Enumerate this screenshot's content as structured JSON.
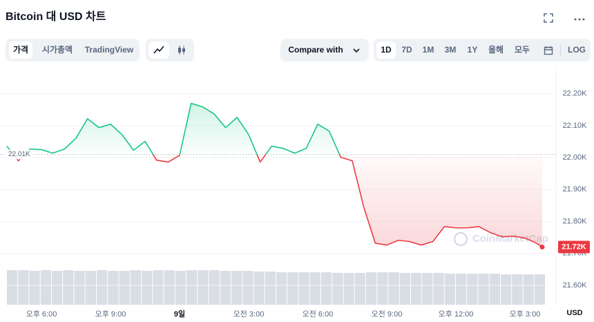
{
  "header": {
    "title": "Bitcoin 대 USD 차트"
  },
  "toolbar": {
    "tabs": [
      "가격",
      "시가총액",
      "TradingView"
    ],
    "compare": "Compare with",
    "ranges": [
      "1D",
      "7D",
      "1M",
      "3M",
      "1Y",
      "올해",
      "모두"
    ],
    "log": "LOG"
  },
  "chart_data": {
    "type": "line",
    "x": [
      16.5,
      17,
      17.5,
      18,
      18.5,
      19,
      19.5,
      20,
      20.5,
      21,
      21.5,
      22,
      22.5,
      23,
      23.5,
      24,
      24.5,
      25,
      25.5,
      26,
      26.5,
      27,
      27.5,
      28,
      28.5,
      29,
      29.5,
      30,
      30.5,
      31,
      31.5,
      32,
      32.5,
      33,
      33.5,
      34,
      34.5,
      35,
      35.5,
      36,
      36.5,
      37,
      37.5,
      38,
      38.5,
      39,
      39.5,
      39.75
    ],
    "series": [
      {
        "name": "Bitcoin",
        "color_up": "#16c784",
        "color_down": "#ea3943",
        "values": [
          22036,
          21990,
          22027,
          22025,
          22014,
          22027,
          22061,
          22122,
          22094,
          22105,
          22072,
          22023,
          22051,
          21992,
          21986,
          22007,
          22170,
          22159,
          22137,
          22094,
          22126,
          22072,
          21986,
          22036,
          22029,
          22014,
          22029,
          22105,
          22083,
          22001,
          21990,
          21845,
          21732,
          21726,
          21741,
          21737,
          21726,
          21737,
          21784,
          21780,
          21780,
          21784,
          21765,
          21752,
          21754,
          21748,
          21732,
          21720
        ]
      }
    ],
    "volume": [
      50,
      50,
      49,
      50,
      49,
      50,
      49,
      49,
      50,
      49,
      49,
      50,
      49,
      50,
      50,
      49,
      50,
      50,
      50,
      49,
      49,
      49,
      48,
      48,
      47,
      47,
      47,
      47,
      47,
      46,
      46,
      46,
      47,
      47,
      47,
      46,
      46,
      46,
      46,
      45,
      45,
      45,
      45,
      45,
      44,
      44,
      44,
      44
    ],
    "xlim": [
      16.5,
      39.9
    ],
    "xticks": [
      {
        "value": 18,
        "label": "오후 6:00"
      },
      {
        "value": 21,
        "label": "오후 9:00"
      },
      {
        "value": 24,
        "label": "9일"
      },
      {
        "value": 27,
        "label": "오전 3:00"
      },
      {
        "value": 30,
        "label": "오전 6:00"
      },
      {
        "value": 33,
        "label": "오전 9:00"
      },
      {
        "value": 36,
        "label": "오후 12:00"
      },
      {
        "value": 39,
        "label": "오후 3:00"
      }
    ],
    "ylim": [
      21550,
      22260
    ],
    "yticks": [
      {
        "value": 22200,
        "label": "22.20K"
      },
      {
        "value": 22100,
        "label": "22.10K"
      },
      {
        "value": 22000,
        "label": "22.00K"
      },
      {
        "value": 21900,
        "label": "21.90K"
      },
      {
        "value": 21800,
        "label": "21.80K"
      },
      {
        "value": 21700,
        "label": "21.70K"
      },
      {
        "value": 21600,
        "label": "21.60K"
      }
    ],
    "y_unit": "USD",
    "reference": {
      "value": 22010,
      "label": "22.01K"
    },
    "price_label": {
      "value": 21720,
      "label": "21.72K"
    },
    "watermark": "CoinMarketCap",
    "grid": true
  }
}
